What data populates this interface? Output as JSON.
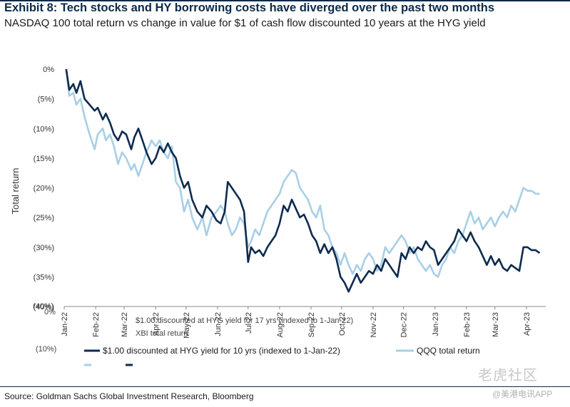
{
  "header": {
    "title": "Exhibit 8: Tech stocks and HY borrowing costs have diverged over the past two months",
    "subtitle": "NASDAQ 100 total return vs change in value for $1 of cash flow discounted 10 years at the HYG yield"
  },
  "footer": {
    "source": "Source: Goldman Sachs Global Investment Research, Bloomberg"
  },
  "watermark": {
    "brand": "老虎社区",
    "handle": "@美港电讯APP"
  },
  "colors": {
    "dark_navy": "#0d2b4e",
    "light_blue": "#a8cfe6",
    "axis": "#888888"
  },
  "chart_data": {
    "type": "line",
    "ylabel": "Total return",
    "ylim": [
      -40,
      0
    ],
    "yticks": [
      0,
      -5,
      -10,
      -15,
      -20,
      -25,
      -30,
      -35,
      -40
    ],
    "ytick_labels": [
      "0%",
      "(5%)",
      "(10%)",
      "(15%)",
      "(20%)",
      "(25%)",
      "(30%)",
      "(35%)",
      "(40%)"
    ],
    "xlim": [
      "2022-01-01",
      "2023-04-20"
    ],
    "xticks": [
      {
        "date": "2022-01-01",
        "label": "Jan-22"
      },
      {
        "date": "2022-02-01",
        "label": "Feb-22"
      },
      {
        "date": "2022-03-01",
        "label": "Mar-22"
      },
      {
        "date": "2022-04-01",
        "label": "Apr-22"
      },
      {
        "date": "2022-05-01",
        "label": "May-22"
      },
      {
        "date": "2022-06-01",
        "label": "Jun-22"
      },
      {
        "date": "2022-07-01",
        "label": "Jul-22"
      },
      {
        "date": "2022-08-01",
        "label": "Aug-22"
      },
      {
        "date": "2022-09-01",
        "label": "Sep-22"
      },
      {
        "date": "2022-10-01",
        "label": "Oct-22"
      },
      {
        "date": "2022-11-01",
        "label": "Nov-22"
      },
      {
        "date": "2022-12-01",
        "label": "Dec-22"
      },
      {
        "date": "2023-01-01",
        "label": "Jan-23"
      },
      {
        "date": "2023-02-01",
        "label": "Feb-23"
      },
      {
        "date": "2023-03-01",
        "label": "Mar-23"
      },
      {
        "date": "2023-04-01",
        "label": "Apr-23"
      }
    ],
    "ghost_labels": {
      "zero": "0%",
      "minus40": "(40%)",
      "minus10": "(10%)",
      "line1": "$1.00 discounted at HYG yield for 17 yrs (indexed to 1-Jan-22)",
      "line2": "XBI total return"
    },
    "legend": [
      {
        "name": "$1.00 discounted at HYG yield for 10 yrs (indexed to 1-Jan-22)",
        "color": "#0d2b4e"
      },
      {
        "name": "QQQ total return",
        "color": "#a8cfe6"
      }
    ],
    "series": [
      {
        "name": "$1.00 discounted at HYG yield for 10 yrs (indexed to 1-Jan-22)",
        "color": "#0d2b4e",
        "points": [
          [
            "2022-01-03",
            0
          ],
          [
            "2022-01-06",
            -3.5
          ],
          [
            "2022-01-10",
            -2.5
          ],
          [
            "2022-01-13",
            -4
          ],
          [
            "2022-01-17",
            -2
          ],
          [
            "2022-01-21",
            -5
          ],
          [
            "2022-01-26",
            -6
          ],
          [
            "2022-01-31",
            -7
          ],
          [
            "2022-02-03",
            -6.5
          ],
          [
            "2022-02-08",
            -8.5
          ],
          [
            "2022-02-11",
            -7.5
          ],
          [
            "2022-02-15",
            -9
          ],
          [
            "2022-02-19",
            -11
          ],
          [
            "2022-02-23",
            -12
          ],
          [
            "2022-02-27",
            -10.5
          ],
          [
            "2022-03-03",
            -11
          ],
          [
            "2022-03-08",
            -13.5
          ],
          [
            "2022-03-11",
            -11.5
          ],
          [
            "2022-03-15",
            -10
          ],
          [
            "2022-03-19",
            -12
          ],
          [
            "2022-03-23",
            -14
          ],
          [
            "2022-03-28",
            -16
          ],
          [
            "2022-04-01",
            -15
          ],
          [
            "2022-04-05",
            -13
          ],
          [
            "2022-04-09",
            -14
          ],
          [
            "2022-04-13",
            -12.5
          ],
          [
            "2022-04-17",
            -14
          ],
          [
            "2022-04-21",
            -15
          ],
          [
            "2022-04-25",
            -18
          ],
          [
            "2022-04-29",
            -20
          ],
          [
            "2022-05-03",
            -19
          ],
          [
            "2022-05-07",
            -22
          ],
          [
            "2022-05-12",
            -24
          ],
          [
            "2022-05-17",
            -25
          ],
          [
            "2022-05-21",
            -23
          ],
          [
            "2022-05-26",
            -24
          ],
          [
            "2022-05-31",
            -25.5
          ],
          [
            "2022-06-04",
            -26
          ],
          [
            "2022-06-08",
            -24
          ],
          [
            "2022-06-11",
            -19
          ],
          [
            "2022-06-15",
            -20
          ],
          [
            "2022-06-19",
            -21
          ],
          [
            "2022-06-23",
            -22
          ],
          [
            "2022-06-27",
            -24
          ],
          [
            "2022-07-01",
            -32.5
          ],
          [
            "2022-07-04",
            -30
          ],
          [
            "2022-07-08",
            -31
          ],
          [
            "2022-07-12",
            -30.5
          ],
          [
            "2022-07-16",
            -31.5
          ],
          [
            "2022-07-20",
            -30
          ],
          [
            "2022-07-24",
            -29
          ],
          [
            "2022-07-28",
            -28
          ],
          [
            "2022-08-01",
            -26
          ],
          [
            "2022-08-05",
            -23
          ],
          [
            "2022-08-09",
            -24
          ],
          [
            "2022-08-13",
            -22
          ],
          [
            "2022-08-17",
            -23.5
          ],
          [
            "2022-08-21",
            -25
          ],
          [
            "2022-08-25",
            -24.5
          ],
          [
            "2022-08-29",
            -26
          ],
          [
            "2022-09-02",
            -28
          ],
          [
            "2022-09-06",
            -29
          ],
          [
            "2022-09-10",
            -31
          ],
          [
            "2022-09-14",
            -29.5
          ],
          [
            "2022-09-18",
            -31
          ],
          [
            "2022-09-22",
            -30
          ],
          [
            "2022-09-26",
            -32
          ],
          [
            "2022-09-30",
            -35
          ],
          [
            "2022-10-04",
            -36
          ],
          [
            "2022-10-08",
            -37.5
          ],
          [
            "2022-10-12",
            -36
          ],
          [
            "2022-10-16",
            -34.5
          ],
          [
            "2022-10-20",
            -36
          ],
          [
            "2022-10-24",
            -35
          ],
          [
            "2022-10-28",
            -34
          ],
          [
            "2022-11-01",
            -34.5
          ],
          [
            "2022-11-05",
            -33
          ],
          [
            "2022-11-09",
            -34
          ],
          [
            "2022-11-13",
            -32
          ],
          [
            "2022-11-17",
            -33
          ],
          [
            "2022-11-21",
            -34
          ],
          [
            "2022-11-25",
            -35
          ],
          [
            "2022-11-29",
            -31
          ],
          [
            "2022-12-03",
            -32
          ],
          [
            "2022-12-07",
            -30
          ],
          [
            "2022-12-11",
            -31
          ],
          [
            "2022-12-15",
            -30
          ],
          [
            "2022-12-19",
            -30.5
          ],
          [
            "2022-12-23",
            -29
          ],
          [
            "2022-12-27",
            -30
          ],
          [
            "2022-12-31",
            -30.5
          ],
          [
            "2023-01-04",
            -33
          ],
          [
            "2023-01-08",
            -32
          ],
          [
            "2023-01-12",
            -31
          ],
          [
            "2023-01-16",
            -30
          ],
          [
            "2023-01-20",
            -29
          ],
          [
            "2023-01-24",
            -27
          ],
          [
            "2023-01-28",
            -28
          ],
          [
            "2023-02-01",
            -29
          ],
          [
            "2023-02-05",
            -27.5
          ],
          [
            "2023-02-09",
            -29
          ],
          [
            "2023-02-13",
            -30
          ],
          [
            "2023-02-17",
            -31.5
          ],
          [
            "2023-02-21",
            -33
          ],
          [
            "2023-02-25",
            -31.5
          ],
          [
            "2023-03-01",
            -33
          ],
          [
            "2023-03-05",
            -32
          ],
          [
            "2023-03-09",
            -33.5
          ],
          [
            "2023-03-13",
            -34
          ],
          [
            "2023-03-17",
            -33
          ],
          [
            "2023-03-21",
            -33.5
          ],
          [
            "2023-03-25",
            -34
          ],
          [
            "2023-03-29",
            -30
          ],
          [
            "2023-04-02",
            -30
          ],
          [
            "2023-04-06",
            -30.5
          ],
          [
            "2023-04-10",
            -30.5
          ],
          [
            "2023-04-14",
            -31
          ]
        ]
      },
      {
        "name": "QQQ total return",
        "color": "#a8cfe6",
        "points": [
          [
            "2022-01-03",
            0
          ],
          [
            "2022-01-06",
            -4.5
          ],
          [
            "2022-01-10",
            -4
          ],
          [
            "2022-01-13",
            -6
          ],
          [
            "2022-01-17",
            -5
          ],
          [
            "2022-01-21",
            -8
          ],
          [
            "2022-01-26",
            -11
          ],
          [
            "2022-01-31",
            -13.5
          ],
          [
            "2022-02-03",
            -11
          ],
          [
            "2022-02-08",
            -10
          ],
          [
            "2022-02-11",
            -12
          ],
          [
            "2022-02-15",
            -11
          ],
          [
            "2022-02-19",
            -13
          ],
          [
            "2022-02-23",
            -16
          ],
          [
            "2022-02-27",
            -14
          ],
          [
            "2022-03-03",
            -15
          ],
          [
            "2022-03-08",
            -17
          ],
          [
            "2022-03-11",
            -16
          ],
          [
            "2022-03-15",
            -18
          ],
          [
            "2022-03-19",
            -16
          ],
          [
            "2022-03-23",
            -14
          ],
          [
            "2022-03-28",
            -12
          ],
          [
            "2022-04-01",
            -13
          ],
          [
            "2022-04-05",
            -12
          ],
          [
            "2022-04-09",
            -14
          ],
          [
            "2022-04-13",
            -15
          ],
          [
            "2022-04-17",
            -13
          ],
          [
            "2022-04-21",
            -19
          ],
          [
            "2022-04-25",
            -20
          ],
          [
            "2022-04-29",
            -24
          ],
          [
            "2022-05-03",
            -22
          ],
          [
            "2022-05-07",
            -25
          ],
          [
            "2022-05-12",
            -27
          ],
          [
            "2022-05-17",
            -25
          ],
          [
            "2022-05-21",
            -28
          ],
          [
            "2022-05-26",
            -25
          ],
          [
            "2022-05-31",
            -24
          ],
          [
            "2022-06-04",
            -23
          ],
          [
            "2022-06-08",
            -24
          ],
          [
            "2022-06-11",
            -26
          ],
          [
            "2022-06-15",
            -28
          ],
          [
            "2022-06-19",
            -27
          ],
          [
            "2022-06-23",
            -25
          ],
          [
            "2022-06-27",
            -26
          ],
          [
            "2022-07-01",
            -30
          ],
          [
            "2022-07-04",
            -29
          ],
          [
            "2022-07-08",
            -27
          ],
          [
            "2022-07-12",
            -28
          ],
          [
            "2022-07-16",
            -26
          ],
          [
            "2022-07-20",
            -24
          ],
          [
            "2022-07-24",
            -23
          ],
          [
            "2022-07-28",
            -22
          ],
          [
            "2022-08-01",
            -21
          ],
          [
            "2022-08-05",
            -19
          ],
          [
            "2022-08-09",
            -18
          ],
          [
            "2022-08-13",
            -17
          ],
          [
            "2022-08-17",
            -17.5
          ],
          [
            "2022-08-21",
            -20
          ],
          [
            "2022-08-25",
            -21
          ],
          [
            "2022-08-29",
            -22
          ],
          [
            "2022-09-02",
            -24
          ],
          [
            "2022-09-06",
            -25
          ],
          [
            "2022-09-10",
            -23
          ],
          [
            "2022-09-14",
            -27
          ],
          [
            "2022-09-18",
            -28
          ],
          [
            "2022-09-22",
            -30
          ],
          [
            "2022-09-26",
            -31
          ],
          [
            "2022-09-30",
            -33
          ],
          [
            "2022-10-04",
            -31
          ],
          [
            "2022-10-08",
            -33
          ],
          [
            "2022-10-12",
            -34.5
          ],
          [
            "2022-10-16",
            -33
          ],
          [
            "2022-10-20",
            -34
          ],
          [
            "2022-10-24",
            -32
          ],
          [
            "2022-10-28",
            -31
          ],
          [
            "2022-11-01",
            -32
          ],
          [
            "2022-11-05",
            -34
          ],
          [
            "2022-11-09",
            -33
          ],
          [
            "2022-11-13",
            -30
          ],
          [
            "2022-11-17",
            -31
          ],
          [
            "2022-11-21",
            -30
          ],
          [
            "2022-11-25",
            -29
          ],
          [
            "2022-11-29",
            -28
          ],
          [
            "2022-12-03",
            -29
          ],
          [
            "2022-12-07",
            -31
          ],
          [
            "2022-12-11",
            -30
          ],
          [
            "2022-12-15",
            -32
          ],
          [
            "2022-12-19",
            -33
          ],
          [
            "2022-12-23",
            -34
          ],
          [
            "2022-12-27",
            -33
          ],
          [
            "2022-12-31",
            -34.5
          ],
          [
            "2023-01-04",
            -35
          ],
          [
            "2023-01-08",
            -33
          ],
          [
            "2023-01-12",
            -32
          ],
          [
            "2023-01-16",
            -30
          ],
          [
            "2023-01-20",
            -31
          ],
          [
            "2023-01-24",
            -29
          ],
          [
            "2023-01-28",
            -28
          ],
          [
            "2023-02-01",
            -26
          ],
          [
            "2023-02-05",
            -24
          ],
          [
            "2023-02-09",
            -26
          ],
          [
            "2023-02-13",
            -25
          ],
          [
            "2023-02-17",
            -27
          ],
          [
            "2023-02-21",
            -26
          ],
          [
            "2023-02-25",
            -25
          ],
          [
            "2023-03-01",
            -26.5
          ],
          [
            "2023-03-05",
            -25
          ],
          [
            "2023-03-09",
            -24
          ],
          [
            "2023-03-13",
            -25
          ],
          [
            "2023-03-17",
            -23
          ],
          [
            "2023-03-21",
            -24
          ],
          [
            "2023-03-25",
            -22
          ],
          [
            "2023-03-29",
            -20
          ],
          [
            "2023-04-02",
            -20.5
          ],
          [
            "2023-04-06",
            -20.5
          ],
          [
            "2023-04-10",
            -21
          ],
          [
            "2023-04-14",
            -21
          ]
        ]
      }
    ]
  }
}
